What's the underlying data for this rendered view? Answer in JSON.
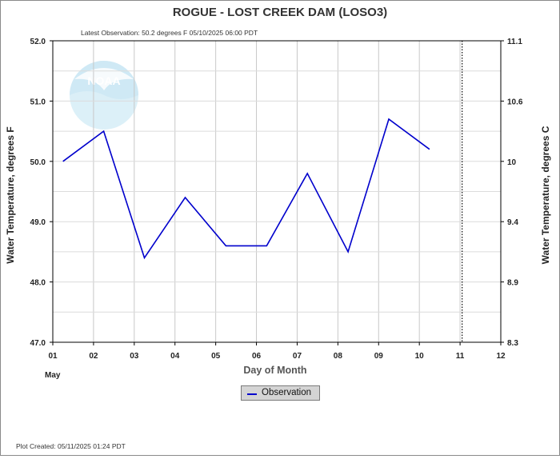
{
  "chart_data": {
    "type": "line",
    "title": "ROGUE - LOST CREEK DAM  (LOSO3)",
    "subtitle": "Latest Observation: 50.2 degrees F 05/10/2025 06:00 PDT",
    "xlabel": "Day of Month",
    "x_month_label": "May",
    "ylabel_left": "Water Temperature, degrees F",
    "ylabel_right": "Water Temperature, degrees C",
    "x_ticks": [
      "01",
      "02",
      "03",
      "04",
      "05",
      "06",
      "07",
      "08",
      "09",
      "10",
      "11",
      "12"
    ],
    "xlim": [
      1,
      12
    ],
    "ylim": [
      47.0,
      52.0
    ],
    "y_ticks_left": [
      "47.0",
      "48.0",
      "49.0",
      "50.0",
      "51.0",
      "52.0"
    ],
    "y_ticks_right": [
      "8.3",
      "8.9",
      "9.4",
      "10",
      "10.6",
      "11.1"
    ],
    "grid": true,
    "series": [
      {
        "name": "Observation",
        "color": "#0000cc",
        "x": [
          1.25,
          2.25,
          3.25,
          4.25,
          5.25,
          6.25,
          7.25,
          8.25,
          9.25,
          10.25
        ],
        "y": [
          50.0,
          50.5,
          48.4,
          49.4,
          48.6,
          48.6,
          49.8,
          48.5,
          50.7,
          50.2
        ]
      }
    ],
    "current_time_marker_x": 11.05,
    "legend_position": "bottom-center",
    "watermark": "NOAA",
    "footer": "Plot Created: 05/11/2025 01:24 PDT"
  }
}
